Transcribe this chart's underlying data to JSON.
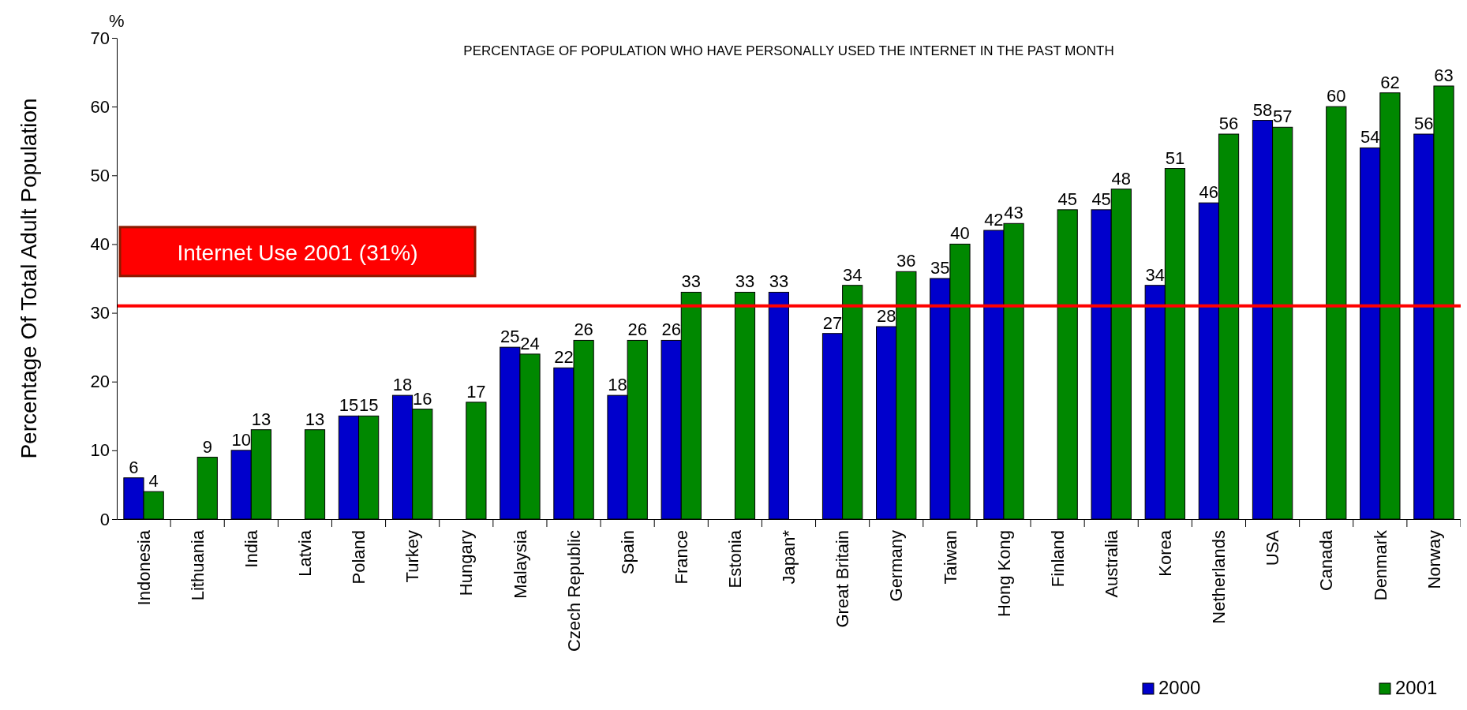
{
  "chart_data": {
    "type": "bar",
    "title": "PERCENTAGE OF POPULATION WHO HAVE PERSONALLY USED THE INTERNET IN THE PAST MONTH",
    "ylabel": "Percentage Of Total Adult Population",
    "annotations": [
      "%"
    ],
    "categories": [
      "Indonesia",
      "Lithuania",
      "India",
      "Latvia",
      "Poland",
      "Turkey",
      "Hungary",
      "Malaysia",
      "Czech Republic",
      "Spain",
      "France",
      "Estonia",
      "Japan*",
      "Great Britain",
      "Germany",
      "Taiwan",
      "Hong Kong",
      "Finland",
      "Australia",
      "Korea",
      "Netherlands",
      "USA",
      "Canada",
      "Denmark",
      "Norway"
    ],
    "series": [
      {
        "name": "2000",
        "color": "#0000cc",
        "values": [
          6,
          null,
          10,
          null,
          15,
          18,
          null,
          25,
          22,
          18,
          26,
          null,
          33,
          27,
          28,
          35,
          42,
          null,
          45,
          34,
          46,
          58,
          null,
          54,
          56
        ]
      },
      {
        "name": "2001",
        "color": "#008800",
        "values": [
          4,
          9,
          13,
          13,
          15,
          16,
          17,
          24,
          26,
          26,
          33,
          33,
          null,
          34,
          36,
          40,
          43,
          45,
          48,
          51,
          56,
          57,
          60,
          62,
          63
        ]
      }
    ],
    "ylim": [
      0,
      70
    ],
    "yticks": [
      0,
      10,
      20,
      30,
      40,
      50,
      60,
      70
    ],
    "ref_lines": [
      {
        "axis": "y",
        "value": 31,
        "label": "Internet Use 2001 (31%)",
        "color": "#ff0000"
      }
    ],
    "data_labels": true,
    "legend": "bottom right",
    "grid": false
  }
}
